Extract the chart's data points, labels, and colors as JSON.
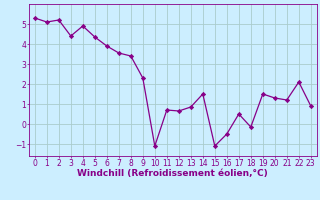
{
  "x": [
    0,
    1,
    2,
    3,
    4,
    5,
    6,
    7,
    8,
    9,
    10,
    11,
    12,
    13,
    14,
    15,
    16,
    17,
    18,
    19,
    20,
    21,
    22,
    23
  ],
  "y": [
    5.3,
    5.1,
    5.2,
    4.4,
    4.9,
    4.35,
    3.9,
    3.55,
    3.4,
    2.3,
    -1.1,
    0.7,
    0.65,
    0.85,
    1.5,
    -1.1,
    -0.5,
    0.5,
    -0.15,
    1.5,
    1.3,
    1.2,
    2.1,
    0.9
  ],
  "line_color": "#880088",
  "marker": "D",
  "marker_size": 2.2,
  "background_color": "#cceeff",
  "grid_color": "#aacccc",
  "tick_color": "#880088",
  "label_color": "#880088",
  "xlabel": "Windchill (Refroidissement éolien,°C)",
  "xlabel_fontsize": 6.5,
  "tick_fontsize": 5.5,
  "ylim": [
    -1.6,
    6.0
  ],
  "xlim": [
    -0.5,
    23.5
  ],
  "yticks": [
    -1,
    0,
    1,
    2,
    3,
    4,
    5
  ],
  "xticks": [
    0,
    1,
    2,
    3,
    4,
    5,
    6,
    7,
    8,
    9,
    10,
    11,
    12,
    13,
    14,
    15,
    16,
    17,
    18,
    19,
    20,
    21,
    22,
    23
  ]
}
